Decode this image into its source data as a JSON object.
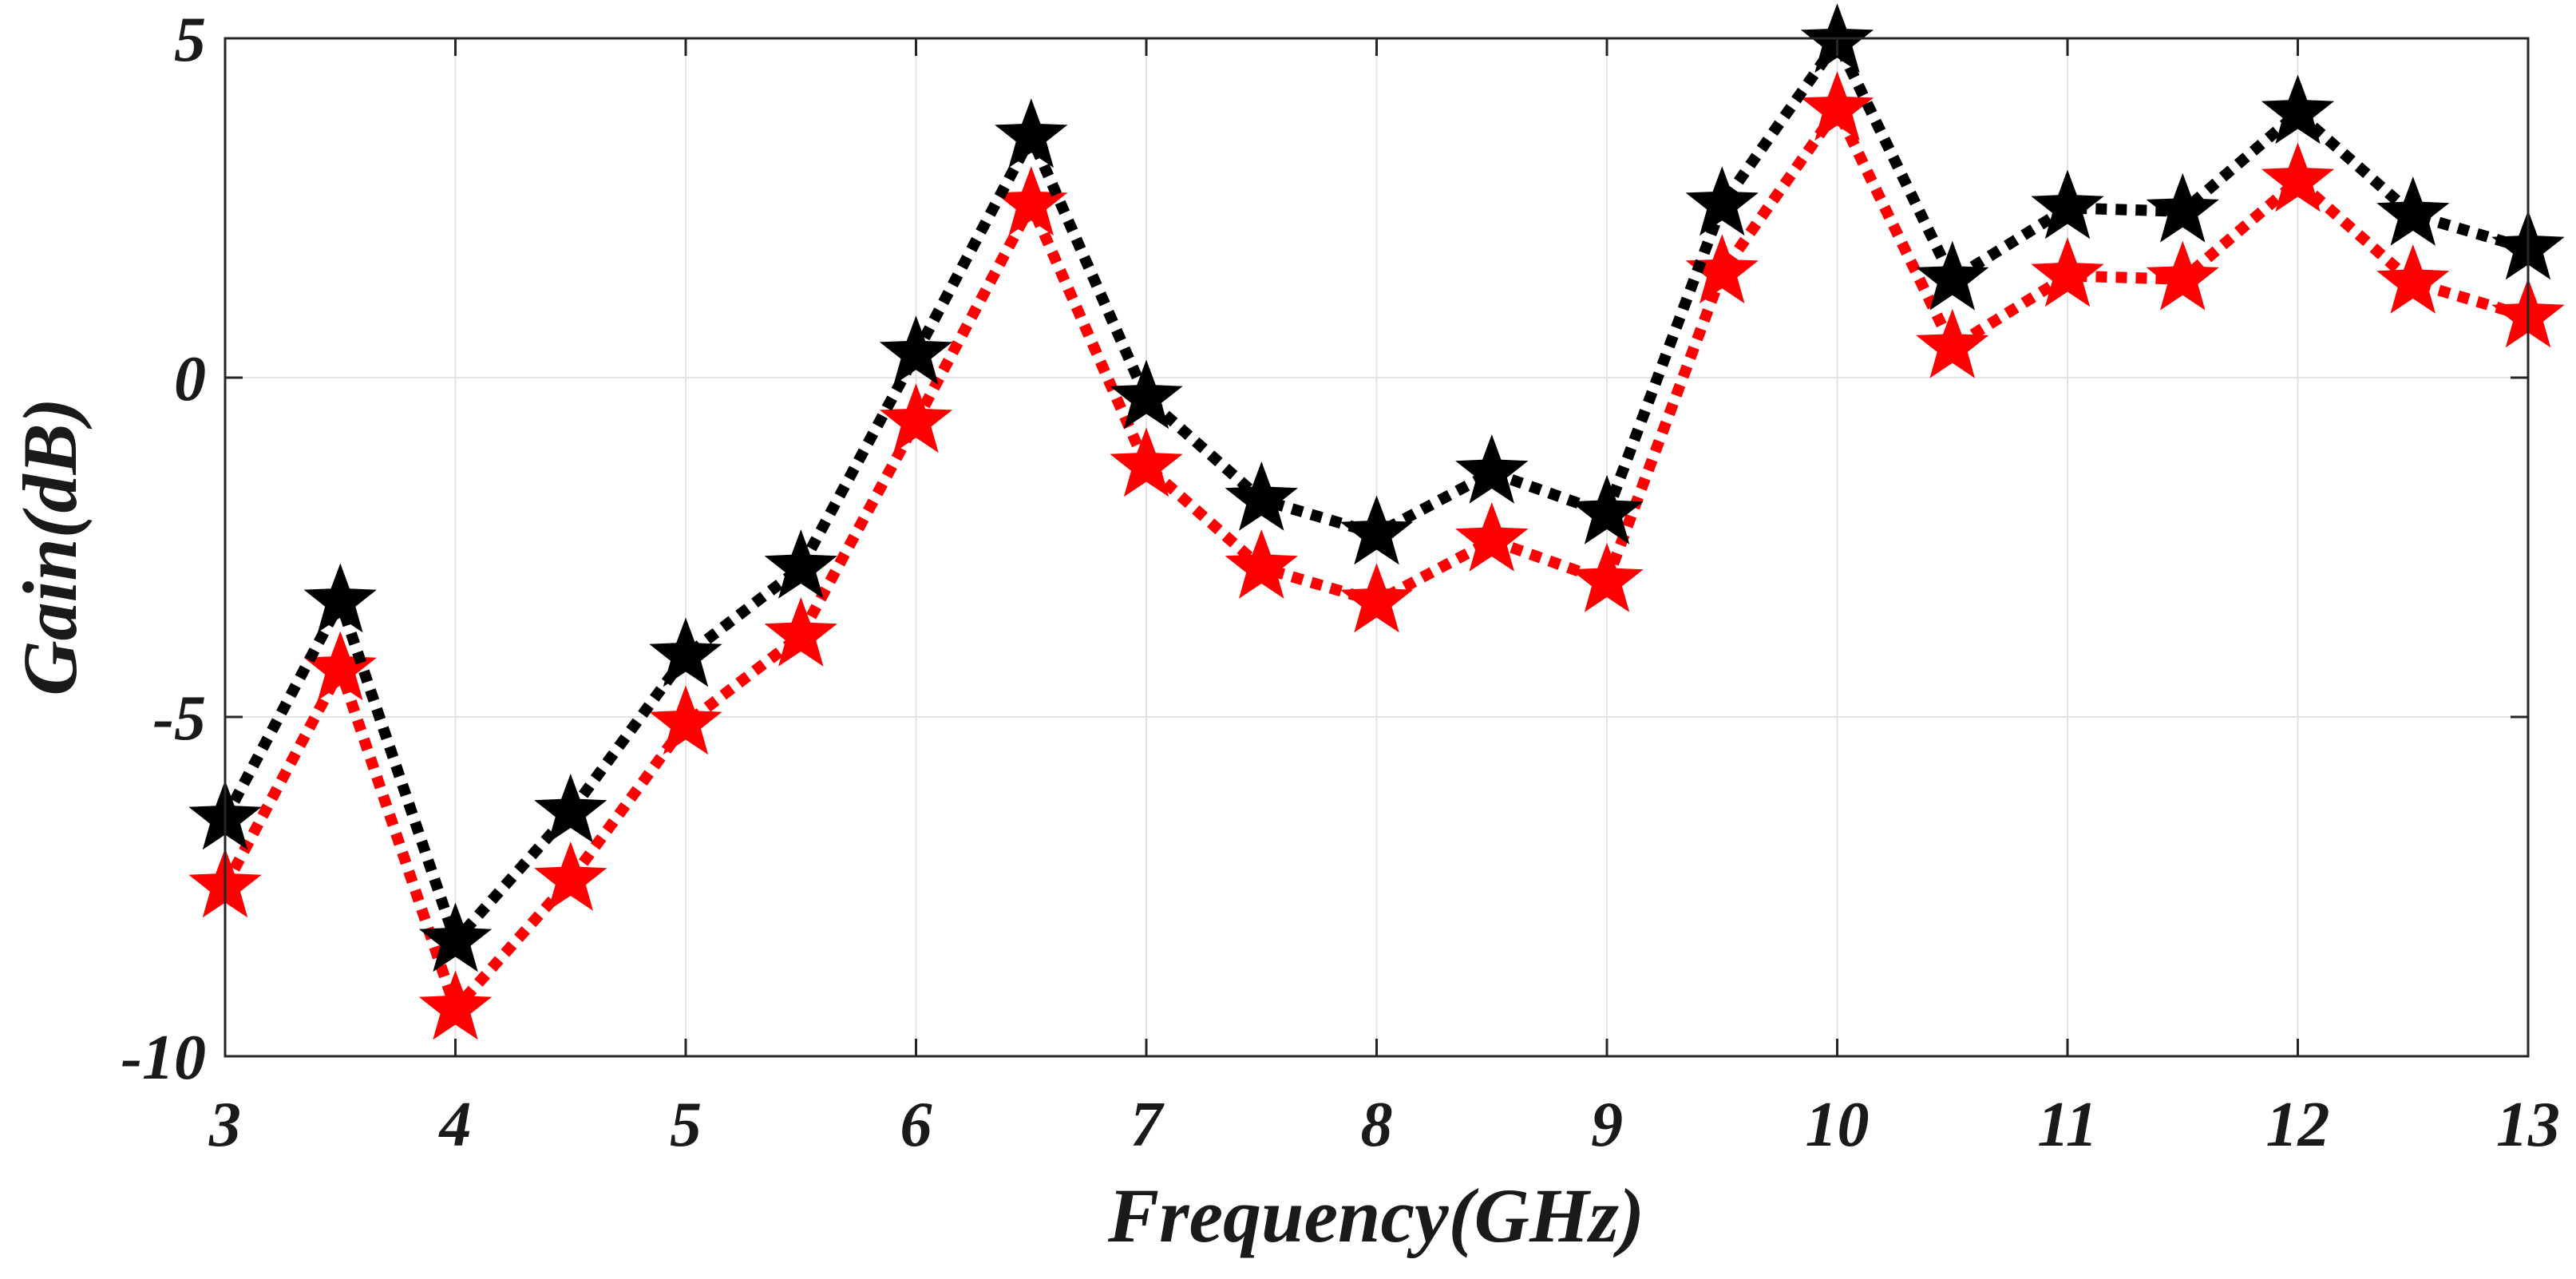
{
  "chart_data": {
    "type": "line",
    "title": "",
    "xlabel": "Frequency(GHz)",
    "ylabel": "Gain(dB)",
    "xlim": [
      3,
      13
    ],
    "ylim": [
      -10,
      5
    ],
    "grid": true,
    "x": [
      3,
      3.5,
      4,
      4.5,
      5,
      5.5,
      6,
      6.5,
      7,
      7.5,
      8,
      8.5,
      9,
      9.5,
      10,
      10.5,
      11,
      11.5,
      12,
      12.5,
      13
    ],
    "x_ticks": [
      3,
      4,
      5,
      6,
      7,
      8,
      9,
      10,
      11,
      12,
      13
    ],
    "x_tick_labels": [
      "3",
      "4",
      "5",
      "6",
      "7",
      "8",
      "9",
      "10",
      "11",
      "12",
      "13"
    ],
    "y_ticks": [
      -10,
      -5,
      0,
      5
    ],
    "y_tick_labels": [
      "-10",
      "-5",
      "0",
      "5"
    ],
    "series": [
      {
        "name": "series-black",
        "color": "#000000",
        "marker": "star",
        "line_style": "dotted",
        "values": [
          -6.5,
          -3.3,
          -8.3,
          -6.4,
          -4.1,
          -2.8,
          0.35,
          3.55,
          -0.3,
          -1.8,
          -2.3,
          -1.4,
          -2.0,
          2.55,
          4.95,
          1.45,
          2.5,
          2.45,
          3.9,
          2.4,
          1.9
        ]
      },
      {
        "name": "series-red",
        "color": "#ff0000",
        "marker": "star",
        "line_style": "dotted",
        "values": [
          -7.5,
          -4.3,
          -9.3,
          -7.4,
          -5.1,
          -3.8,
          -0.65,
          2.55,
          -1.3,
          -2.8,
          -3.3,
          -2.4,
          -3.0,
          1.55,
          3.95,
          0.45,
          1.5,
          1.45,
          2.9,
          1.4,
          0.9
        ]
      }
    ]
  }
}
